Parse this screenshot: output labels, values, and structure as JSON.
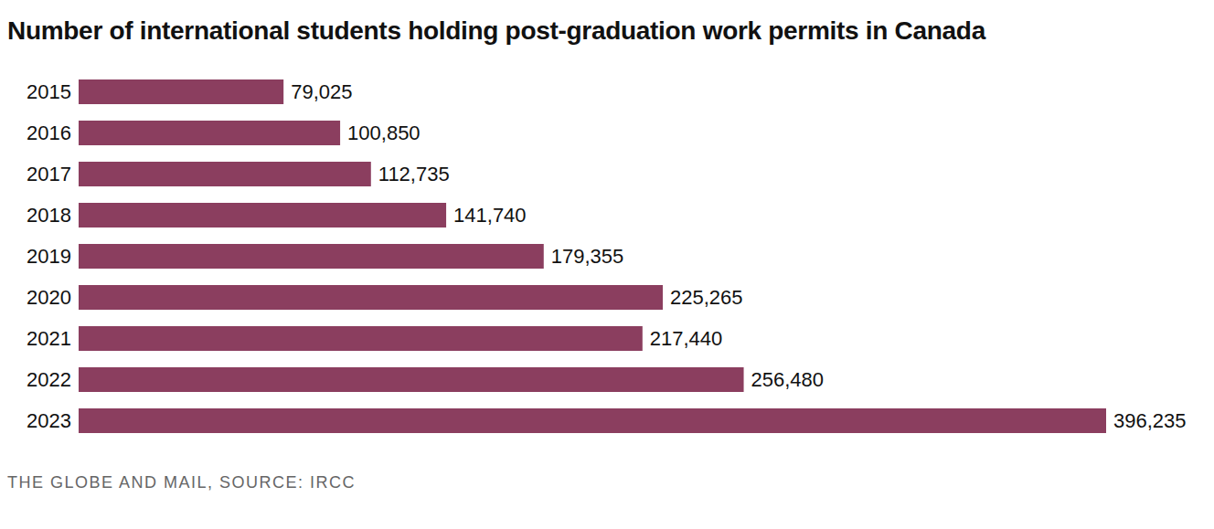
{
  "chart_data": {
    "type": "bar",
    "title": "Number of international students holding post-graduation work permits in Canada",
    "source": "THE GLOBE AND MAIL, SOURCE: IRCC",
    "orientation": "horizontal",
    "categories": [
      "2015",
      "2016",
      "2017",
      "2018",
      "2019",
      "2020",
      "2021",
      "2022",
      "2023"
    ],
    "values": [
      79025,
      100850,
      112735,
      141740,
      179355,
      225265,
      217440,
      256480,
      396235
    ],
    "value_labels": [
      "79,025",
      "100,850",
      "112,735",
      "141,740",
      "179,355",
      "225,265",
      "217,440",
      "256,480",
      "396,235"
    ],
    "color": "#8b3e5f",
    "data_labels": true,
    "tick_labels": "y",
    "grid": false
  }
}
